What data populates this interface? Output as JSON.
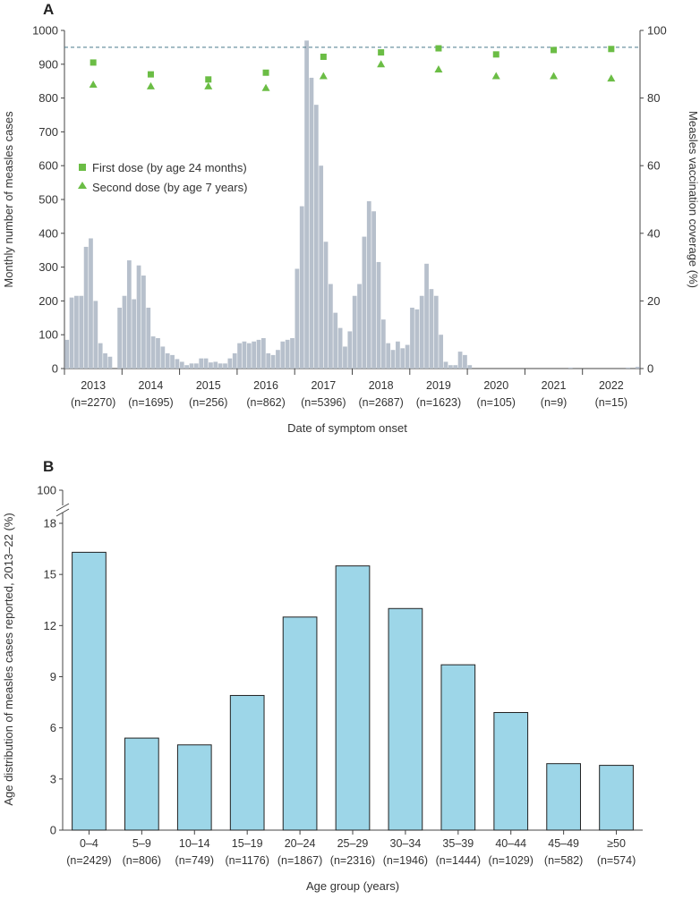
{
  "chart_data": [
    {
      "panel": "A",
      "type": "bar",
      "ylabel": "Monthly number of measles cases",
      "y2label": "Measles vaccination coverage (%)",
      "xlabel": "Date of symptom onset",
      "ylim": [
        0,
        1000
      ],
      "y2lim": [
        0,
        100
      ],
      "yticks": [
        0,
        100,
        200,
        300,
        400,
        500,
        600,
        700,
        800,
        900,
        1000
      ],
      "y2ticks": [
        0,
        20,
        40,
        60,
        80,
        100
      ],
      "reference_line": 95,
      "years": [
        {
          "year": "2013",
          "n": "(n=2270)"
        },
        {
          "year": "2014",
          "n": "(n=1695)"
        },
        {
          "year": "2015",
          "n": "(n=256)"
        },
        {
          "year": "2016",
          "n": "(n=862)"
        },
        {
          "year": "2017",
          "n": "(n=5396)"
        },
        {
          "year": "2018",
          "n": "(n=2687)"
        },
        {
          "year": "2019",
          "n": "(n=1623)"
        },
        {
          "year": "2020",
          "n": "(n=105)"
        },
        {
          "year": "2021",
          "n": "(n=9)"
        },
        {
          "year": "2022",
          "n": "(n=15)"
        }
      ],
      "monthly_cases": [
        85,
        210,
        215,
        215,
        360,
        385,
        200,
        75,
        45,
        35,
        0,
        180,
        215,
        320,
        205,
        305,
        275,
        180,
        95,
        90,
        65,
        45,
        40,
        28,
        20,
        10,
        15,
        15,
        30,
        30,
        18,
        20,
        15,
        15,
        30,
        45,
        75,
        80,
        75,
        80,
        85,
        90,
        45,
        40,
        55,
        80,
        85,
        90,
        295,
        480,
        970,
        860,
        780,
        600,
        375,
        250,
        165,
        120,
        65,
        110,
        215,
        250,
        390,
        495,
        465,
        315,
        145,
        75,
        55,
        80,
        60,
        70,
        180,
        175,
        215,
        310,
        235,
        215,
        100,
        20,
        10,
        10,
        50,
        40,
        10,
        0,
        0,
        0,
        0,
        0,
        0,
        0,
        0,
        0,
        0,
        0,
        0,
        0,
        0,
        0,
        0,
        0,
        0,
        0,
        0,
        3,
        0,
        0,
        0,
        0,
        0,
        0,
        0,
        0,
        0,
        0,
        0,
        3,
        0,
        5
      ],
      "series": [
        {
          "name": "First dose (by age 24 months)",
          "marker": "square",
          "values": [
            90.5,
            87,
            85.5,
            87.5,
            92.2,
            93.5,
            94.7,
            92.9,
            94.2,
            94.5
          ]
        },
        {
          "name": "Second dose (by age 7 years)",
          "marker": "triangle",
          "values": [
            84,
            83.5,
            83.5,
            83,
            86.5,
            90,
            88.5,
            86.5,
            86.5,
            85.8
          ]
        }
      ],
      "colors": {
        "bars": "#b7c0cc",
        "markers": "#6bbd45",
        "refline": "#4a7a8c"
      }
    },
    {
      "panel": "B",
      "type": "bar",
      "ylabel": "Age distribution of measles cases reported, 2013–22 (%)",
      "xlabel": "Age group (years)",
      "ylim": [
        0,
        18
      ],
      "yticks": [
        0,
        3,
        6,
        9,
        12,
        15,
        18
      ],
      "axis_break_top": 100,
      "categories": [
        "0–4",
        "5–9",
        "10–14",
        "15–19",
        "20–24",
        "25–29",
        "30–34",
        "35–39",
        "40–44",
        "45–49",
        "≥50"
      ],
      "counts": [
        "(n=2429)",
        "(n=806)",
        "(n=749)",
        "(n=1176)",
        "(n=1867)",
        "(n=2316)",
        "(n=1946)",
        "(n=1444)",
        "(n=1029)",
        "(n=582)",
        "(n=574)"
      ],
      "values": [
        16.3,
        5.4,
        5.0,
        7.9,
        12.5,
        15.5,
        13.0,
        9.7,
        6.9,
        3.9,
        3.8
      ],
      "colors": {
        "bars": "#9dd6e8",
        "stroke": "#222222"
      }
    }
  ]
}
